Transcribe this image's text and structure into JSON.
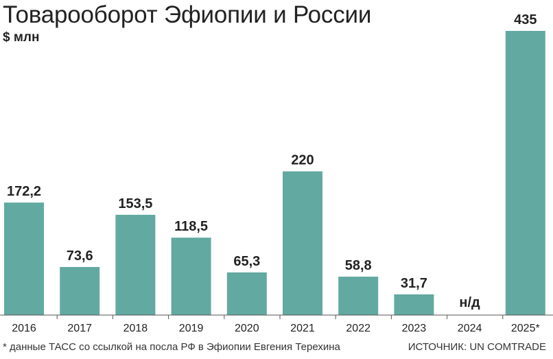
{
  "title": "Товарооборот Эфиопии и России",
  "unit": "$ млн",
  "footnote": "* данные ТАСС со ссылкой на посла РФ в Эфиопии Евгения Терехина",
  "source": "ИСТОЧНИК: UN COMTRADE",
  "colors": {
    "bar": "#62a9a1",
    "axis": "#555555",
    "text": "#222222"
  },
  "chart_data": {
    "type": "bar",
    "title": "Товарооборот Эфиопии и России",
    "ylabel": "$ млн",
    "xlabel": "",
    "categories": [
      "2016",
      "2017",
      "2018",
      "2019",
      "2020",
      "2021",
      "2022",
      "2023",
      "2024",
      "2025*"
    ],
    "values": [
      172.2,
      73.6,
      153.5,
      118.5,
      65.3,
      220,
      58.8,
      31.7,
      null,
      435
    ],
    "value_labels": [
      "172,2",
      "73,6",
      "153,5",
      "118,5",
      "65,3",
      "220",
      "58,8",
      "31,7",
      "н/д",
      "435"
    ],
    "ylim": [
      0,
      435
    ],
    "grid": false,
    "legend": "none"
  }
}
